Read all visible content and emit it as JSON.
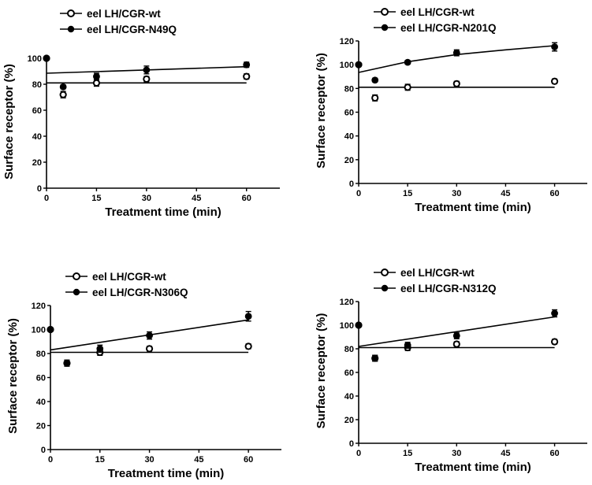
{
  "chart_data": [
    {
      "type": "scatter",
      "xlabel": "Treatment time (min)",
      "ylabel": "Surface receptor (%)",
      "xlim": [
        0,
        70
      ],
      "ylim": [
        0,
        100
      ],
      "xticks": [
        0,
        15,
        30,
        45,
        60
      ],
      "yticks": [
        0,
        20,
        40,
        60,
        80,
        100
      ],
      "legend_position": "top-left",
      "series": [
        {
          "name": "eel LH/CGR-wt",
          "marker": "open-circle",
          "x": [
            0,
            5,
            15,
            30,
            60
          ],
          "y": [
            100,
            72,
            81,
            84,
            86
          ],
          "err": [
            0,
            2.5,
            2.5,
            2,
            2
          ],
          "fit": {
            "x": [
              0,
              60
            ],
            "y": [
              81,
              81
            ]
          }
        },
        {
          "name": "eel LH/CGR-N49Q",
          "marker": "filled-circle",
          "x": [
            0,
            5,
            15,
            30,
            60
          ],
          "y": [
            100,
            78,
            86,
            91,
            95
          ],
          "err": [
            0,
            1.5,
            2.5,
            3,
            2
          ],
          "fit": {
            "x": [
              0,
              60
            ],
            "y": [
              88.5,
              93.5
            ]
          }
        }
      ]
    },
    {
      "type": "scatter",
      "xlabel": "Treatment time (min)",
      "ylabel": "Surface receptor (%)",
      "xlim": [
        0,
        70
      ],
      "ylim": [
        0,
        120
      ],
      "xticks": [
        0,
        15,
        30,
        45,
        60
      ],
      "yticks": [
        0,
        20,
        40,
        60,
        80,
        100,
        120
      ],
      "legend_position": "top-left",
      "series": [
        {
          "name": "eel LH/CGR-wt",
          "marker": "open-circle",
          "x": [
            0,
            5,
            15,
            30,
            60
          ],
          "y": [
            100,
            72,
            81,
            84,
            86
          ],
          "err": [
            0,
            2.5,
            2.5,
            2,
            2
          ],
          "fit": {
            "x": [
              0,
              60
            ],
            "y": [
              81,
              81
            ]
          }
        },
        {
          "name": "eel LH/CGR-N201Q",
          "marker": "filled-circle",
          "x": [
            0,
            5,
            15,
            30,
            60
          ],
          "y": [
            100,
            87,
            102,
            110,
            115
          ],
          "err": [
            0,
            1.5,
            1.5,
            2.5,
            3.5
          ],
          "fit": {
            "x": [
              0,
              15,
              30,
              45,
              60
            ],
            "y": [
              93.5,
              102.5,
              108.5,
              112.5,
              116
            ]
          }
        }
      ]
    },
    {
      "type": "scatter",
      "xlabel": "Treatment time (min)",
      "ylabel": "Surface receptor (%)",
      "xlim": [
        0,
        70
      ],
      "ylim": [
        0,
        120
      ],
      "xticks": [
        0,
        15,
        30,
        45,
        60
      ],
      "yticks": [
        0,
        20,
        40,
        60,
        80,
        100,
        120
      ],
      "legend_position": "top-left",
      "series": [
        {
          "name": "eel LH/CGR-wt",
          "marker": "open-circle",
          "x": [
            0,
            5,
            15,
            30,
            60
          ],
          "y": [
            100,
            72,
            81,
            84,
            86
          ],
          "err": [
            0,
            2.5,
            2.5,
            2,
            2
          ],
          "fit": {
            "x": [
              0,
              60
            ],
            "y": [
              81,
              81
            ]
          }
        },
        {
          "name": "eel LH/CGR-N306Q",
          "marker": "filled-circle",
          "x": [
            0,
            5,
            15,
            30,
            60
          ],
          "y": [
            100,
            72,
            84,
            95,
            111
          ],
          "err": [
            0,
            2.5,
            3,
            3,
            4
          ],
          "fit": {
            "x": [
              0,
              60
            ],
            "y": [
              83,
              108
            ]
          }
        }
      ]
    },
    {
      "type": "scatter",
      "xlabel": "Treatment time (min)",
      "ylabel": "Surface receptor (%)",
      "xlim": [
        0,
        70
      ],
      "ylim": [
        0,
        120
      ],
      "xticks": [
        0,
        15,
        30,
        45,
        60
      ],
      "yticks": [
        0,
        20,
        40,
        60,
        80,
        100,
        120
      ],
      "legend_position": "top-left",
      "series": [
        {
          "name": "eel LH/CGR-wt",
          "marker": "open-circle",
          "x": [
            0,
            5,
            15,
            30,
            60
          ],
          "y": [
            100,
            72,
            81,
            84,
            86
          ],
          "err": [
            0,
            2.5,
            2.5,
            2,
            2
          ],
          "fit": {
            "x": [
              0,
              60
            ],
            "y": [
              81,
              81
            ]
          }
        },
        {
          "name": "eel LH/CGR-N312Q",
          "marker": "filled-circle",
          "x": [
            0,
            5,
            15,
            30,
            60
          ],
          "y": [
            100,
            72,
            83,
            91,
            110
          ],
          "err": [
            0,
            2.5,
            2.5,
            2.5,
            3
          ],
          "fit": {
            "x": [
              0,
              60
            ],
            "y": [
              82,
              107
            ]
          }
        }
      ]
    }
  ]
}
